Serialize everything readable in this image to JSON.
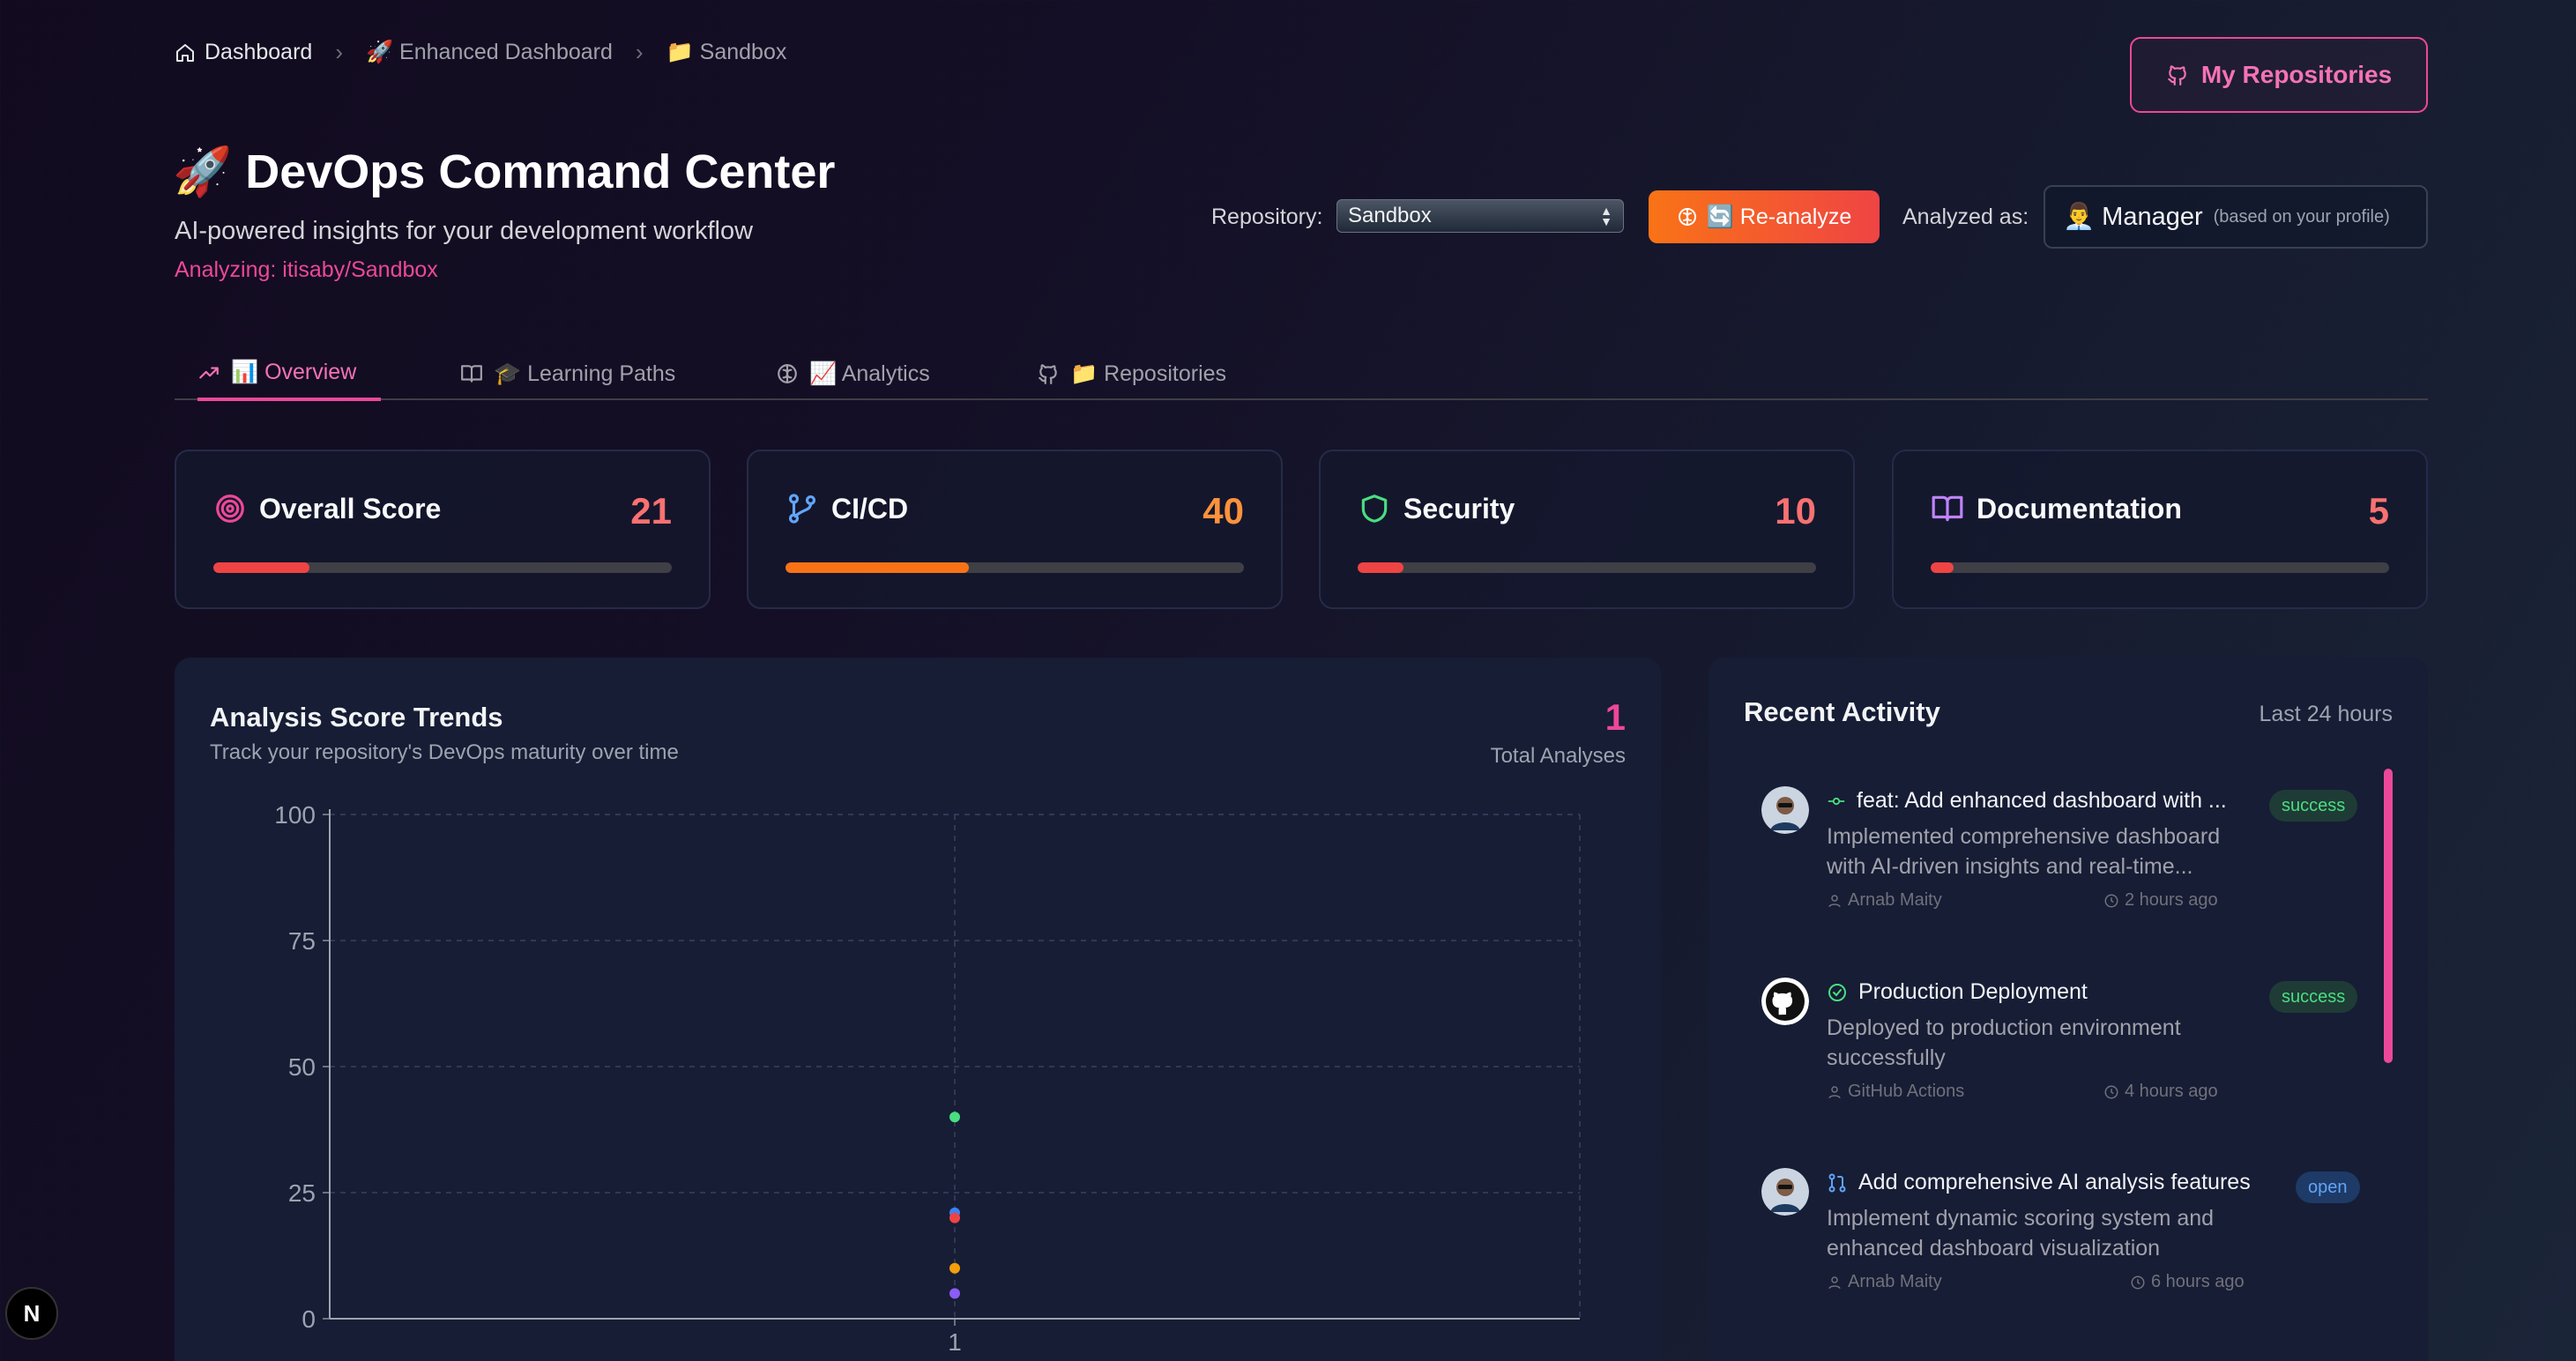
{
  "breadcrumb": {
    "home": "Dashboard",
    "enhanced": "🚀 Enhanced Dashboard",
    "current": "📁 Sandbox"
  },
  "header": {
    "my_repos_label": "My Repositories",
    "title": "🚀 DevOps Command Center",
    "subtitle": "AI-powered insights for your development workflow",
    "analyzing": "Analyzing: itisaby/Sandbox"
  },
  "controls": {
    "repository_label": "Repository:",
    "repository_value": "Sandbox",
    "reanalyze_label": "🔄 Re-analyze",
    "analyzed_as_label": "Analyzed as:",
    "role": "👨‍💼 Manager",
    "role_hint": "(based on your profile)"
  },
  "tabs": [
    {
      "label": "📊 Overview",
      "icon": "trending-up-icon",
      "active": true
    },
    {
      "label": "🎓 Learning Paths",
      "icon": "book-icon",
      "active": false
    },
    {
      "label": "📈 Analytics",
      "icon": "brain-icon",
      "active": false
    },
    {
      "label": "📁 Repositories",
      "icon": "github-icon",
      "active": false
    }
  ],
  "scores": [
    {
      "label": "Overall Score",
      "value": "21",
      "percent": 21,
      "icon": "target-icon",
      "color": "#ef4444",
      "score_color": "#f87171"
    },
    {
      "label": "CI/CD",
      "value": "40",
      "percent": 40,
      "icon": "git-branch-icon",
      "color": "#f97316",
      "score_color": "#fb923c"
    },
    {
      "label": "Security",
      "value": "10",
      "percent": 10,
      "icon": "shield-icon",
      "color": "#ef4444",
      "score_color": "#f87171"
    },
    {
      "label": "Documentation",
      "value": "5",
      "percent": 5,
      "icon": "book-open-icon",
      "color": "#ef4444",
      "score_color": "#f87171"
    }
  ],
  "trends": {
    "title": "Analysis Score Trends",
    "subtitle": "Track your repository's DevOps maturity over time",
    "total": "1",
    "total_label": "Total Analyses"
  },
  "chart_data": {
    "type": "scatter",
    "title": "Analysis Score Trends",
    "x": [
      "1"
    ],
    "ylim": [
      0,
      100
    ],
    "yticks": [
      "0",
      "25",
      "50",
      "75",
      "100"
    ],
    "grid": true,
    "series": [
      {
        "color": "#4ade80",
        "values": [
          40
        ]
      },
      {
        "color": "#3b82f6",
        "values": [
          21
        ]
      },
      {
        "color": "#ef4444",
        "values": [
          20
        ]
      },
      {
        "color": "#f59e0b",
        "values": [
          10
        ]
      },
      {
        "color": "#8b5cf6",
        "values": [
          5
        ]
      }
    ]
  },
  "activity": {
    "title": "Recent Activity",
    "range": "Last 24 hours",
    "items": [
      {
        "title": "feat: Add enhanced dashboard with ...",
        "icon": "git-commit-icon",
        "desc1": "Implemented comprehensive dashboard",
        "desc2": "with AI-driven insights and real-time...",
        "author": "Arnab Maity",
        "time": "2 hours ago",
        "status": "success"
      },
      {
        "title": "Production Deployment",
        "icon": "check-circle-icon",
        "desc1": "Deployed to production environment",
        "desc2": "successfully",
        "author": "GitHub Actions",
        "time": "4 hours ago",
        "status": "success"
      },
      {
        "title": "Add comprehensive AI analysis features",
        "icon": "git-pull-request-icon",
        "desc1": "Implement dynamic scoring system and",
        "desc2": "enhanced dashboard visualization",
        "author": "Arnab Maity",
        "time": "6 hours ago",
        "status": "open"
      }
    ]
  },
  "devtools_label": "N"
}
